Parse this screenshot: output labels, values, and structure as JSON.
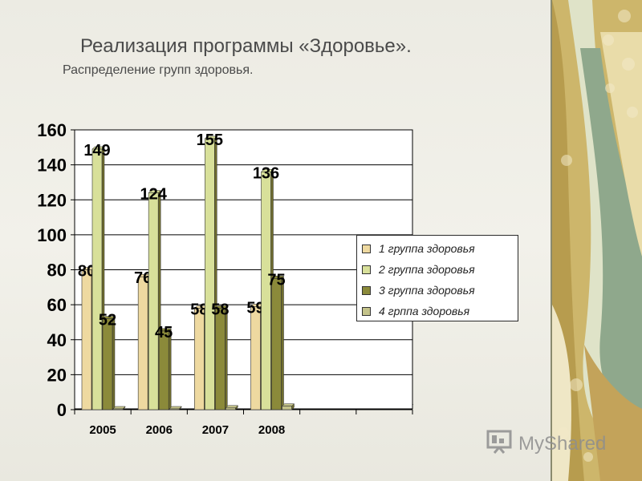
{
  "slide": {
    "title": "Реализация программы «Здоровье».",
    "subtitle": "Распределение групп здоровья."
  },
  "watermark": {
    "text": "MyShared",
    "icon": "presentation-icon"
  },
  "colors": {
    "group1": "#eed9a0",
    "group2": "#d8e09a",
    "group3": "#8b8a3a",
    "group4": "#c4c38a",
    "axis": "#000000",
    "grid": "#000000"
  },
  "chart_data": {
    "type": "bar",
    "title": "",
    "xlabel": "",
    "ylabel": "",
    "categories": [
      "2005",
      "2006",
      "2007",
      "2008",
      "",
      ""
    ],
    "ylim": [
      0,
      160
    ],
    "yticks": [
      0,
      20,
      40,
      60,
      80,
      100,
      120,
      140,
      160
    ],
    "grid": true,
    "legend_position": "right",
    "series": [
      {
        "name": "1 группа здоровья",
        "values": [
          80,
          76,
          58,
          59,
          null,
          null
        ],
        "labels": [
          "80",
          "76",
          "58",
          "59",
          "",
          ""
        ]
      },
      {
        "name": "2 группа  здоровья",
        "values": [
          149,
          124,
          155,
          136,
          null,
          null
        ],
        "labels": [
          "149",
          "124",
          "155",
          "136",
          "",
          ""
        ]
      },
      {
        "name": "3 группа здоровья",
        "values": [
          52,
          45,
          58,
          75,
          null,
          null
        ],
        "labels": [
          "52",
          "45",
          "58",
          "75",
          "",
          ""
        ]
      },
      {
        "name": "4 грппа здоровья",
        "values": [
          0,
          0,
          1,
          2,
          null,
          null
        ],
        "labels": [
          "",
          "",
          "",
          "",
          "",
          ""
        ]
      }
    ]
  }
}
